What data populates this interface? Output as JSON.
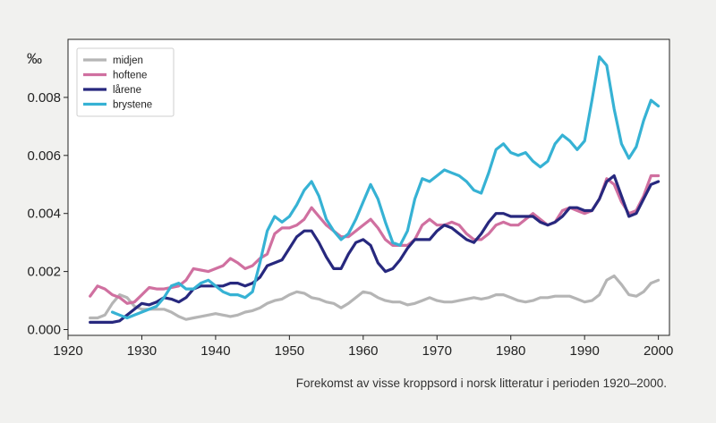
{
  "caption": "Forekomst av visse kroppsord i norsk litteratur i perioden 1920–2000.",
  "chart_data": {
    "type": "line",
    "title": "",
    "xlabel": "",
    "ylabel": "‰",
    "xlim": [
      1920,
      2001.5
    ],
    "ylim": [
      -0.0002,
      0.01
    ],
    "xticks": [
      "1920",
      "1930",
      "1940",
      "1950",
      "1960",
      "1970",
      "1980",
      "1990",
      "2000"
    ],
    "yticks": [
      "0.000",
      "0.002",
      "0.004",
      "0.006",
      "0.008"
    ],
    "grid": false,
    "legend_position": "top-left",
    "series": [
      {
        "name": "midjen",
        "color": "#b5b5b5",
        "x": [
          1923,
          1924,
          1925,
          1926,
          1927,
          1928,
          1929,
          1930,
          1931,
          1932,
          1933,
          1934,
          1935,
          1936,
          1937,
          1938,
          1939,
          1940,
          1941,
          1942,
          1943,
          1944,
          1945,
          1946,
          1947,
          1948,
          1949,
          1950,
          1951,
          1952,
          1953,
          1954,
          1955,
          1956,
          1957,
          1958,
          1959,
          1960,
          1961,
          1962,
          1963,
          1964,
          1965,
          1966,
          1967,
          1968,
          1969,
          1970,
          1971,
          1972,
          1973,
          1974,
          1975,
          1976,
          1977,
          1978,
          1979,
          1980,
          1981,
          1982,
          1983,
          1984,
          1985,
          1986,
          1987,
          1988,
          1989,
          1990,
          1991,
          1992,
          1993,
          1994,
          1995,
          1996,
          1997,
          1998,
          1999,
          2000
        ],
        "values": [
          0.0004,
          0.0004,
          0.0005,
          0.0009,
          0.0012,
          0.0011,
          0.0008,
          0.0007,
          0.0007,
          0.0007,
          0.0007,
          0.0006,
          0.00045,
          0.00035,
          0.0004,
          0.00045,
          0.0005,
          0.00055,
          0.0005,
          0.00045,
          0.0005,
          0.0006,
          0.00065,
          0.00075,
          0.0009,
          0.001,
          0.00105,
          0.0012,
          0.0013,
          0.00125,
          0.0011,
          0.00105,
          0.00095,
          0.0009,
          0.00075,
          0.0009,
          0.0011,
          0.0013,
          0.00125,
          0.0011,
          0.001,
          0.00095,
          0.00095,
          0.00085,
          0.0009,
          0.001,
          0.0011,
          0.001,
          0.00095,
          0.00095,
          0.001,
          0.00105,
          0.0011,
          0.00105,
          0.0011,
          0.0012,
          0.0012,
          0.0011,
          0.001,
          0.00095,
          0.001,
          0.0011,
          0.0011,
          0.00115,
          0.00115,
          0.00115,
          0.00105,
          0.00095,
          0.001,
          0.0012,
          0.0017,
          0.00185,
          0.00155,
          0.0012,
          0.00115,
          0.0013,
          0.0016,
          0.0017
        ]
      },
      {
        "name": "hoftene",
        "color": "#d070a0",
        "x": [
          1923,
          1924,
          1925,
          1926,
          1927,
          1928,
          1929,
          1930,
          1931,
          1932,
          1933,
          1934,
          1935,
          1936,
          1937,
          1938,
          1939,
          1940,
          1941,
          1942,
          1943,
          1944,
          1945,
          1946,
          1947,
          1948,
          1949,
          1950,
          1951,
          1952,
          1953,
          1954,
          1955,
          1956,
          1957,
          1958,
          1959,
          1960,
          1961,
          1962,
          1963,
          1964,
          1965,
          1966,
          1967,
          1968,
          1969,
          1970,
          1971,
          1972,
          1973,
          1974,
          1975,
          1976,
          1977,
          1978,
          1979,
          1980,
          1981,
          1982,
          1983,
          1984,
          1985,
          1986,
          1987,
          1988,
          1989,
          1990,
          1991,
          1992,
          1993,
          1994,
          1995,
          1996,
          1997,
          1998,
          1999,
          2000
        ],
        "values": [
          0.00115,
          0.0015,
          0.0014,
          0.0012,
          0.0011,
          0.0009,
          0.00095,
          0.0012,
          0.00145,
          0.0014,
          0.0014,
          0.00145,
          0.0015,
          0.0017,
          0.0021,
          0.00205,
          0.002,
          0.0021,
          0.0022,
          0.00245,
          0.0023,
          0.0021,
          0.0022,
          0.00245,
          0.0026,
          0.0033,
          0.0035,
          0.0035,
          0.0036,
          0.0038,
          0.0042,
          0.0039,
          0.0036,
          0.0034,
          0.0032,
          0.0032,
          0.0034,
          0.0036,
          0.0038,
          0.0035,
          0.0031,
          0.0029,
          0.0029,
          0.0029,
          0.0031,
          0.0036,
          0.0038,
          0.0036,
          0.0036,
          0.0037,
          0.0036,
          0.0033,
          0.0031,
          0.0031,
          0.0033,
          0.0036,
          0.0037,
          0.0036,
          0.0036,
          0.0038,
          0.004,
          0.0038,
          0.0036,
          0.0037,
          0.0041,
          0.0042,
          0.0041,
          0.004,
          0.0041,
          0.0045,
          0.0052,
          0.005,
          0.0044,
          0.004,
          0.0041,
          0.0046,
          0.0053,
          0.0053
        ]
      },
      {
        "name": "lårene",
        "color": "#27287e",
        "x": [
          1923,
          1924,
          1925,
          1926,
          1927,
          1928,
          1929,
          1930,
          1931,
          1932,
          1933,
          1934,
          1935,
          1936,
          1937,
          1938,
          1939,
          1940,
          1941,
          1942,
          1943,
          1944,
          1945,
          1946,
          1947,
          1948,
          1949,
          1950,
          1951,
          1952,
          1953,
          1954,
          1955,
          1956,
          1957,
          1958,
          1959,
          1960,
          1961,
          1962,
          1963,
          1964,
          1965,
          1966,
          1967,
          1968,
          1969,
          1970,
          1971,
          1972,
          1973,
          1974,
          1975,
          1976,
          1977,
          1978,
          1979,
          1980,
          1981,
          1982,
          1983,
          1984,
          1985,
          1986,
          1987,
          1988,
          1989,
          1990,
          1991,
          1992,
          1993,
          1994,
          1995,
          1996,
          1997,
          1998,
          1999,
          2000
        ],
        "values": [
          0.00025,
          0.00025,
          0.00025,
          0.00025,
          0.0003,
          0.0005,
          0.0007,
          0.0009,
          0.00085,
          0.00095,
          0.0011,
          0.00105,
          0.00095,
          0.0011,
          0.0014,
          0.0015,
          0.0015,
          0.0015,
          0.0015,
          0.0016,
          0.0016,
          0.0015,
          0.0016,
          0.0018,
          0.0022,
          0.0023,
          0.0024,
          0.0028,
          0.0032,
          0.0034,
          0.0034,
          0.003,
          0.0025,
          0.0021,
          0.0021,
          0.0026,
          0.003,
          0.0031,
          0.0029,
          0.0023,
          0.002,
          0.0021,
          0.0024,
          0.0028,
          0.0031,
          0.0031,
          0.0031,
          0.0034,
          0.0036,
          0.0035,
          0.0033,
          0.0031,
          0.003,
          0.0033,
          0.0037,
          0.004,
          0.004,
          0.0039,
          0.0039,
          0.0039,
          0.0039,
          0.0037,
          0.0036,
          0.0037,
          0.0039,
          0.0042,
          0.0042,
          0.0041,
          0.0041,
          0.0045,
          0.0051,
          0.0053,
          0.0046,
          0.0039,
          0.004,
          0.0045,
          0.005,
          0.0051
        ]
      },
      {
        "name": "brystene",
        "color": "#36b2d4",
        "x": [
          1926,
          1927,
          1928,
          1929,
          1930,
          1931,
          1932,
          1933,
          1934,
          1935,
          1936,
          1937,
          1938,
          1939,
          1940,
          1941,
          1942,
          1943,
          1944,
          1945,
          1946,
          1947,
          1948,
          1949,
          1950,
          1951,
          1952,
          1953,
          1954,
          1955,
          1956,
          1957,
          1958,
          1959,
          1960,
          1961,
          1962,
          1963,
          1964,
          1965,
          1966,
          1967,
          1968,
          1969,
          1970,
          1971,
          1972,
          1973,
          1974,
          1975,
          1976,
          1977,
          1978,
          1979,
          1980,
          1981,
          1982,
          1983,
          1984,
          1985,
          1986,
          1987,
          1988,
          1989,
          1990,
          1991,
          1992,
          1993,
          1994,
          1995,
          1996,
          1997,
          1998,
          1999,
          2000
        ],
        "values": [
          0.0006,
          0.0005,
          0.0004,
          0.0005,
          0.0006,
          0.0007,
          0.0008,
          0.0011,
          0.0015,
          0.0016,
          0.0014,
          0.0014,
          0.0016,
          0.0017,
          0.0015,
          0.0013,
          0.0012,
          0.0012,
          0.0011,
          0.0013,
          0.0023,
          0.0034,
          0.0039,
          0.0037,
          0.0039,
          0.0043,
          0.0048,
          0.0051,
          0.0046,
          0.0038,
          0.0034,
          0.0031,
          0.0033,
          0.0038,
          0.0044,
          0.005,
          0.0045,
          0.0037,
          0.003,
          0.0029,
          0.0034,
          0.0045,
          0.0052,
          0.0051,
          0.0053,
          0.0055,
          0.0054,
          0.0053,
          0.0051,
          0.0048,
          0.0047,
          0.0054,
          0.0062,
          0.0064,
          0.0061,
          0.006,
          0.0061,
          0.0058,
          0.0056,
          0.0058,
          0.0064,
          0.0067,
          0.0065,
          0.0062,
          0.0065,
          0.0079,
          0.0094,
          0.0091,
          0.0076,
          0.0064,
          0.0059,
          0.0063,
          0.0072,
          0.0079,
          0.0077
        ]
      }
    ]
  }
}
